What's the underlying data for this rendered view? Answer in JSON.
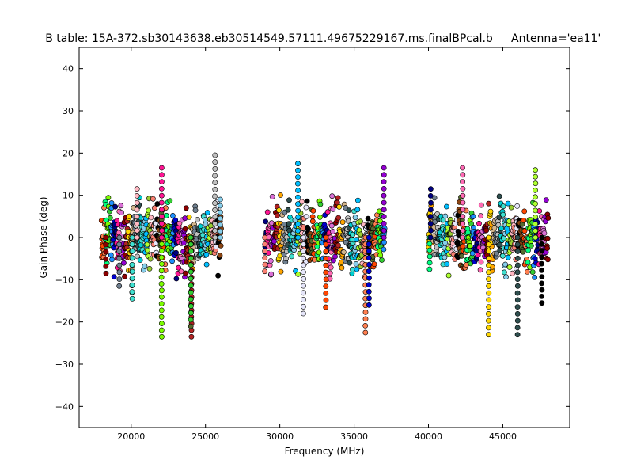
{
  "chart_data": {
    "type": "scatter",
    "title": "B table: 15A-372.sb30143638.eb30514549.57111.49675229167.ms.finalBPcal.b",
    "title_right": "Antenna='ea11'",
    "xlabel": "Frequency (MHz)",
    "ylabel": "Gain Phase (deg)",
    "xlim": [
      16500,
      49500
    ],
    "ylim": [
      -45,
      45
    ],
    "x_ticks": [
      20000,
      25000,
      30000,
      35000,
      40000,
      45000
    ],
    "y_ticks": [
      40,
      30,
      20,
      10,
      0,
      -10,
      -20,
      -30,
      -40
    ],
    "x_tick_labels": [
      "20000",
      "25000",
      "30000",
      "35000",
      "40000",
      "45000"
    ],
    "y_tick_labels": [
      "40",
      "30",
      "20",
      "10",
      "0",
      "−10",
      "−20",
      "−30",
      "−40"
    ],
    "grid": false,
    "legend": "none",
    "marker": "filled circle, black edge",
    "frequency_bands_mhz": [
      {
        "start": 18000,
        "end": 26000
      },
      {
        "start": 29000,
        "end": 37000
      },
      {
        "start": 40000,
        "end": 48000
      }
    ],
    "spectral_window_width_mhz": 128,
    "typical_phase_range_deg": [
      -10,
      10
    ],
    "series_colors": [
      "#ff4500",
      "#ff7f50",
      "#00ff7f",
      "#7cfc00",
      "#32cd32",
      "#1e90ff",
      "#0000cd",
      "#000080",
      "#ff1493",
      "#ff69b4",
      "#da70d6",
      "#9400d3",
      "#8b0000",
      "#b22222",
      "#ffd700",
      "#ffa500",
      "#d2b48c",
      "#708090",
      "#c0c0c0",
      "#2f4f4f",
      "#00ced1",
      "#40e0d0",
      "#87ceeb",
      "#00bfff",
      "#adff2f",
      "#9acd32",
      "#ffb6c1",
      "#fa8072",
      "#e6e6fa",
      "#000000",
      "#8b4513",
      "#556b2f"
    ],
    "extreme_points": [
      {
        "x": 22050,
        "y": -23.5
      },
      {
        "x": 22060,
        "y": 16.5
      },
      {
        "x": 24060,
        "y": -23.5
      },
      {
        "x": 25640,
        "y": 19.5
      },
      {
        "x": 31220,
        "y": 17.5
      },
      {
        "x": 31590,
        "y": -18
      },
      {
        "x": 35760,
        "y": -22.5
      },
      {
        "x": 36000,
        "y": -16
      },
      {
        "x": 37000,
        "y": 16.5
      },
      {
        "x": 20060,
        "y": -13
      },
      {
        "x": 20070,
        "y": -14.5
      },
      {
        "x": 20400,
        "y": 11.5
      },
      {
        "x": 24020,
        "y": -21
      },
      {
        "x": 24020,
        "y": -19.5
      },
      {
        "x": 42300,
        "y": 16.5
      },
      {
        "x": 44050,
        "y": -23
      },
      {
        "x": 46000,
        "y": -23
      },
      {
        "x": 47190,
        "y": 16
      },
      {
        "x": 47620,
        "y": -15.5
      },
      {
        "x": 40080,
        "y": -7.5
      },
      {
        "x": 40150,
        "y": 11.5
      },
      {
        "x": 18300,
        "y": -8.5
      },
      {
        "x": 19200,
        "y": -11.5
      },
      {
        "x": 26000,
        "y": 9
      },
      {
        "x": 29000,
        "y": -8
      },
      {
        "x": 33100,
        "y": -16.5
      }
    ]
  }
}
